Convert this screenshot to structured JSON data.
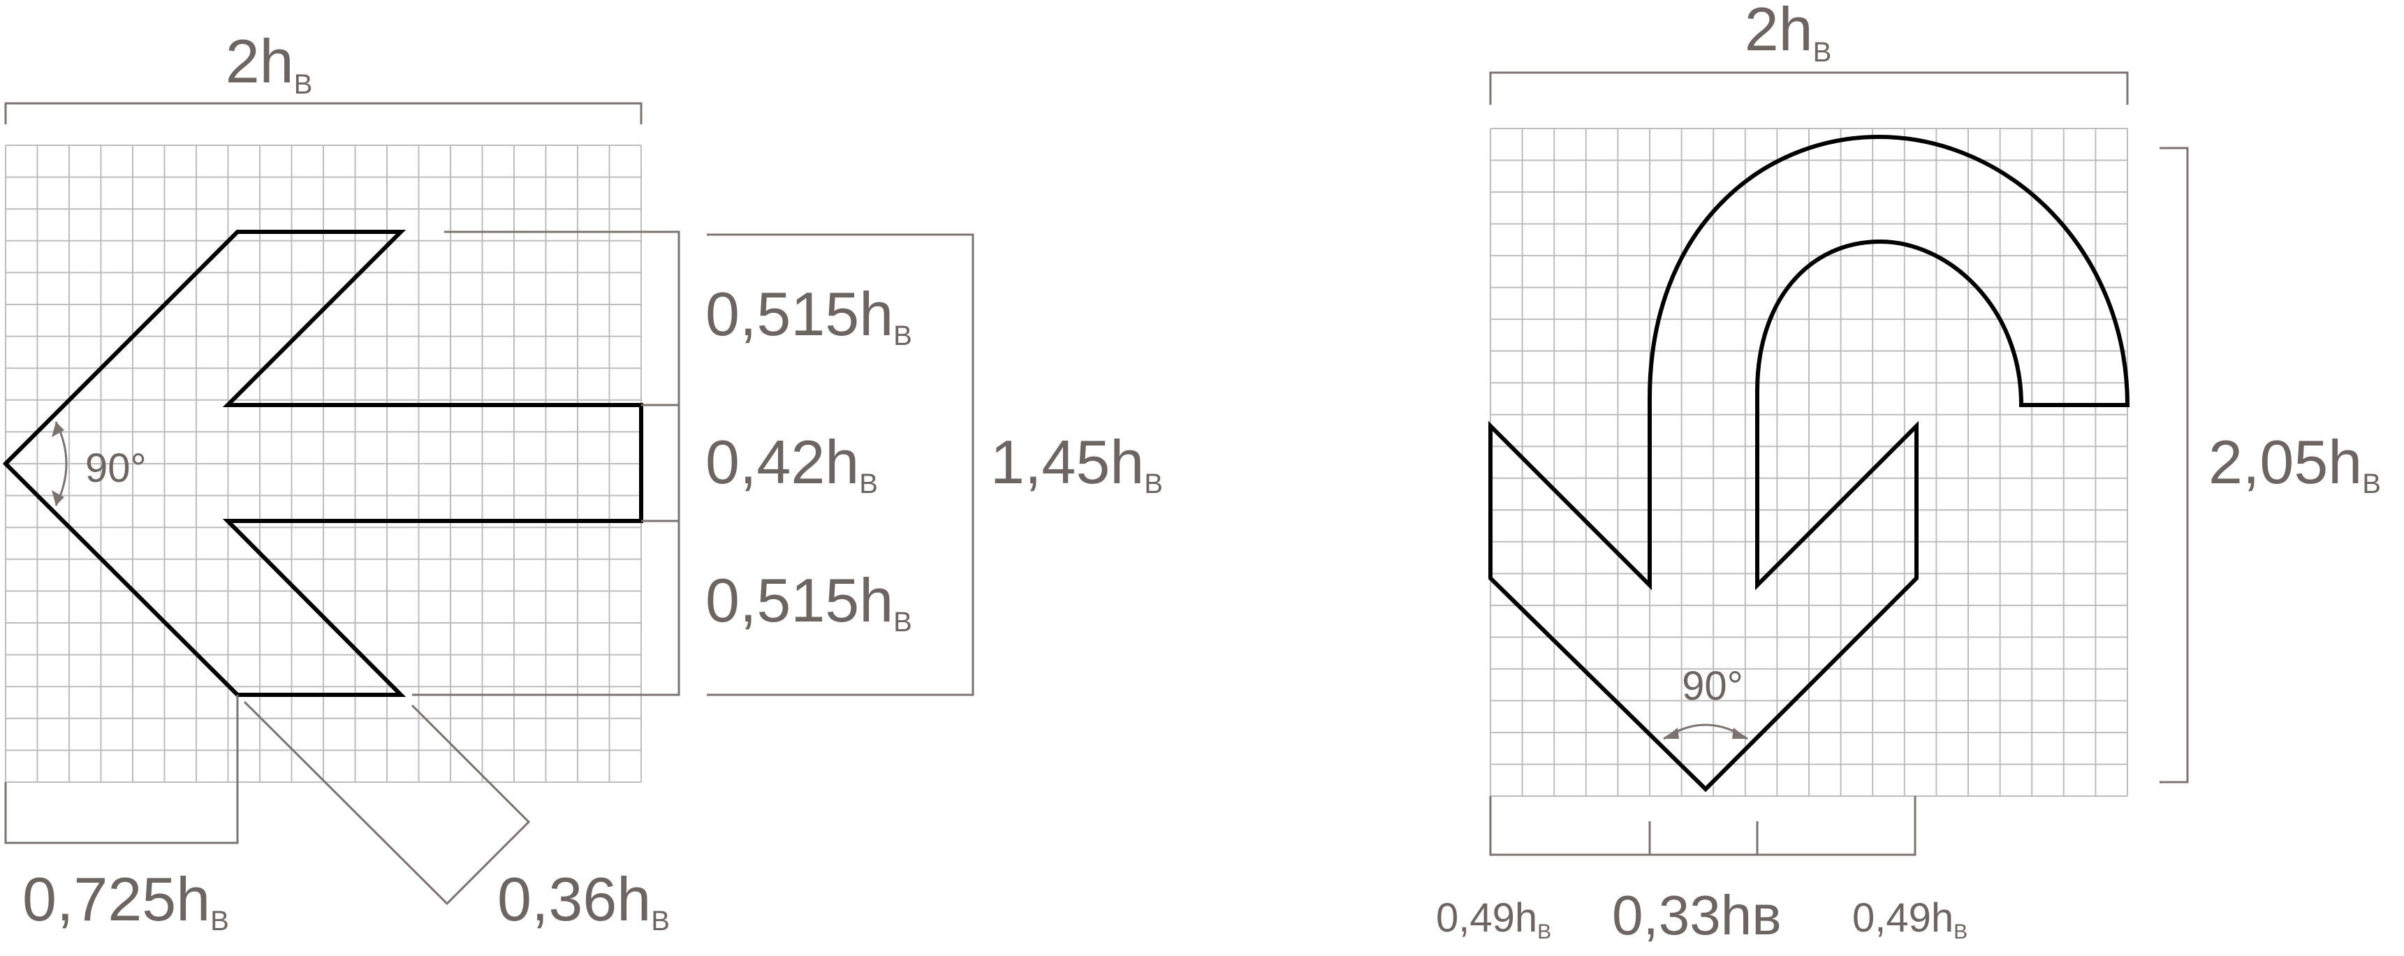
{
  "left_figure": {
    "width_label": {
      "value": "2h",
      "sub": "B"
    },
    "angle_label": "90°",
    "upper_segment": {
      "value": "0,515h",
      "sub": "B"
    },
    "shaft_segment": {
      "value": "0,42h",
      "sub": "B"
    },
    "lower_segment": {
      "value": "0,515h",
      "sub": "B"
    },
    "total_height": {
      "value": "1,45h",
      "sub": "B"
    },
    "head_length": {
      "value": "0,725h",
      "sub": "B"
    },
    "head_stroke": {
      "value": "0,36h",
      "sub": "B"
    }
  },
  "right_figure": {
    "width_label": {
      "value": "2h",
      "sub": "B"
    },
    "height_label": {
      "value": "2,05h",
      "sub": "B"
    },
    "angle_label": "90°",
    "bottom_left": {
      "value": "0,49h",
      "sub": "B"
    },
    "bottom_mid": {
      "value": "0,33hв"
    },
    "bottom_right": {
      "value": "0,49h",
      "sub": "B"
    }
  },
  "colors": {
    "grid": "#bdbdbd",
    "outline": "#000000",
    "dimension": "#7a7370",
    "text": "#6d6561"
  }
}
